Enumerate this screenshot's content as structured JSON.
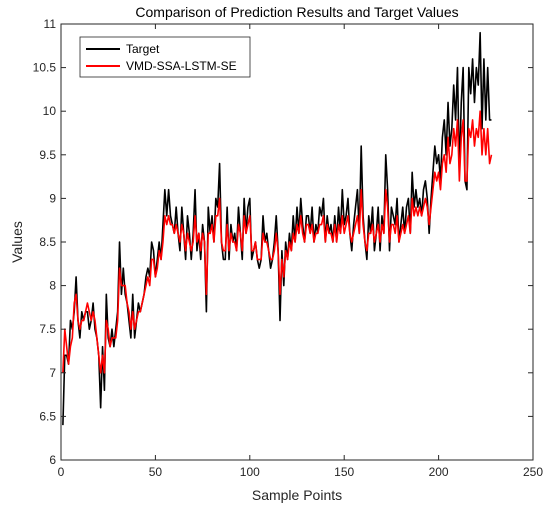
{
  "chart_data": {
    "type": "line",
    "title": "Comparison of Prediction Results and Target Values",
    "xlabel": "Sample Points",
    "ylabel": "Values",
    "xlim": [
      0,
      250
    ],
    "ylim": [
      6,
      11
    ],
    "xticks": [
      "0",
      "50",
      "100",
      "150",
      "200",
      "250"
    ],
    "yticks": [
      "6",
      "6.5",
      "7",
      "7.5",
      "8",
      "8.5",
      "9",
      "9.5",
      "10",
      "10.5",
      "11"
    ],
    "grid": false,
    "legend_position": "top-left",
    "series": [
      {
        "name": "Target",
        "color": "#000000",
        "values": [
          6.4,
          7.2,
          7.2,
          7.1,
          7.6,
          7.5,
          7.7,
          8.1,
          7.6,
          7.4,
          7.7,
          7.6,
          7.7,
          7.7,
          7.5,
          7.6,
          7.8,
          7.5,
          7.4,
          7.2,
          6.6,
          7.3,
          6.8,
          7.9,
          7.4,
          7.3,
          7.5,
          7.3,
          7.5,
          7.7,
          8.5,
          7.9,
          8.2,
          7.9,
          7.8,
          7.6,
          7.4,
          7.9,
          7.4,
          7.6,
          7.8,
          7.7,
          7.8,
          7.9,
          8.1,
          8.2,
          8.1,
          8.5,
          8.4,
          8.1,
          8.3,
          8.5,
          8.3,
          8.7,
          9.1,
          8.8,
          9.1,
          8.8,
          8.7,
          8.6,
          8.9,
          8.6,
          8.4,
          8.9,
          8.6,
          8.3,
          8.8,
          8.6,
          8.3,
          8.6,
          9.1,
          8.4,
          8.6,
          8.3,
          8.7,
          8.5,
          7.7,
          8.9,
          8.6,
          8.8,
          8.5,
          9.0,
          8.9,
          9.4,
          8.5,
          8.3,
          8.3,
          8.9,
          8.3,
          8.7,
          8.5,
          8.6,
          8.4,
          8.9,
          8.6,
          8.3,
          9.0,
          8.6,
          8.9,
          9.0,
          8.3,
          8.4,
          8.5,
          8.3,
          8.2,
          8.3,
          8.8,
          8.5,
          8.6,
          8.4,
          8.2,
          8.3,
          8.5,
          8.8,
          8.4,
          7.6,
          8.4,
          8.0,
          8.5,
          8.3,
          8.6,
          8.4,
          8.8,
          8.5,
          8.9,
          8.6,
          9.0,
          8.7,
          8.5,
          8.8,
          8.8,
          8.6,
          8.9,
          8.5,
          8.7,
          8.6,
          8.9,
          8.8,
          9.0,
          8.5,
          8.8,
          8.6,
          8.7,
          8.5,
          8.8,
          8.5,
          8.9,
          8.6,
          9.1,
          8.7,
          8.8,
          9.0,
          8.6,
          8.4,
          8.7,
          8.9,
          9.1,
          8.6,
          9.6,
          8.8,
          8.5,
          8.3,
          8.8,
          8.6,
          8.9,
          8.4,
          8.6,
          8.9,
          8.4,
          8.8,
          8.6,
          9.5,
          9.1,
          8.4,
          8.9,
          8.8,
          8.7,
          9.0,
          8.5,
          8.7,
          8.9,
          8.6,
          8.9,
          9.0,
          8.6,
          9.3,
          8.9,
          9.1,
          8.9,
          9.0,
          8.8,
          9.1,
          9.2,
          9.0,
          8.6,
          9.0,
          9.3,
          9.6,
          9.4,
          9.5,
          9.2,
          9.7,
          9.9,
          9.5,
          10.1,
          9.6,
          9.8,
          10.3,
          9.9,
          10.5,
          9.3,
          10.1,
          10.5,
          9.2,
          9.1,
          10.5,
          10.2,
          10.6,
          10.1,
          10.5,
          10.3,
          10.9,
          9.8,
          10.6,
          9.9,
          10.5,
          9.9,
          9.9
        ],
        "x_start": 1
      },
      {
        "name": "VMD-SSA-LSTM-SE",
        "color": "#ff0000",
        "values": [
          7.0,
          7.5,
          7.3,
          7.1,
          7.3,
          7.4,
          7.8,
          7.9,
          7.6,
          7.5,
          7.6,
          7.6,
          7.7,
          7.8,
          7.7,
          7.6,
          7.7,
          7.6,
          7.4,
          7.2,
          7.0,
          7.2,
          7.0,
          7.6,
          7.5,
          7.3,
          7.4,
          7.4,
          7.4,
          7.6,
          8.2,
          8.0,
          8.0,
          8.0,
          7.8,
          7.7,
          7.5,
          7.7,
          7.5,
          7.6,
          7.7,
          7.7,
          7.8,
          7.9,
          8.0,
          8.1,
          8.0,
          8.3,
          8.3,
          8.1,
          8.2,
          8.4,
          8.3,
          8.5,
          8.8,
          8.7,
          8.8,
          8.7,
          8.7,
          8.6,
          8.7,
          8.6,
          8.5,
          8.7,
          8.6,
          8.4,
          8.6,
          8.5,
          8.4,
          8.5,
          8.8,
          8.5,
          8.6,
          8.4,
          8.6,
          8.5,
          7.9,
          8.6,
          8.6,
          8.7,
          8.5,
          8.8,
          8.8,
          9.0,
          8.5,
          8.4,
          8.4,
          8.7,
          8.4,
          8.6,
          8.5,
          8.5,
          8.4,
          8.7,
          8.6,
          8.4,
          8.8,
          8.6,
          8.7,
          8.8,
          8.4,
          8.4,
          8.5,
          8.3,
          8.3,
          8.3,
          8.6,
          8.5,
          8.5,
          8.4,
          8.3,
          8.3,
          8.4,
          8.6,
          8.4,
          7.9,
          8.3,
          8.1,
          8.4,
          8.3,
          8.5,
          8.4,
          8.6,
          8.5,
          8.7,
          8.6,
          8.8,
          8.6,
          8.5,
          8.7,
          8.7,
          8.6,
          8.7,
          8.5,
          8.6,
          8.6,
          8.7,
          8.7,
          8.8,
          8.5,
          8.7,
          8.6,
          8.6,
          8.5,
          8.7,
          8.5,
          8.7,
          8.6,
          8.8,
          8.6,
          8.7,
          8.8,
          8.6,
          8.5,
          8.6,
          8.7,
          8.8,
          8.6,
          9.1,
          8.7,
          8.5,
          8.4,
          8.6,
          8.6,
          8.7,
          8.5,
          8.6,
          8.7,
          8.5,
          8.7,
          8.6,
          9.1,
          8.9,
          8.5,
          8.7,
          8.7,
          8.6,
          8.8,
          8.5,
          8.6,
          8.7,
          8.6,
          8.7,
          8.8,
          8.6,
          9.0,
          8.8,
          8.9,
          8.8,
          8.9,
          8.8,
          8.9,
          9.0,
          8.9,
          8.7,
          8.9,
          9.1,
          9.3,
          9.2,
          9.3,
          9.1,
          9.4,
          9.5,
          9.3,
          9.7,
          9.4,
          9.5,
          9.8,
          9.6,
          9.9,
          9.2,
          9.7,
          9.9,
          9.2,
          9.2,
          9.8,
          9.7,
          9.9,
          9.6,
          9.8,
          9.7,
          10.0,
          9.5,
          9.8,
          9.5,
          9.8,
          9.4,
          9.5
        ],
        "x_start": 1
      }
    ]
  }
}
